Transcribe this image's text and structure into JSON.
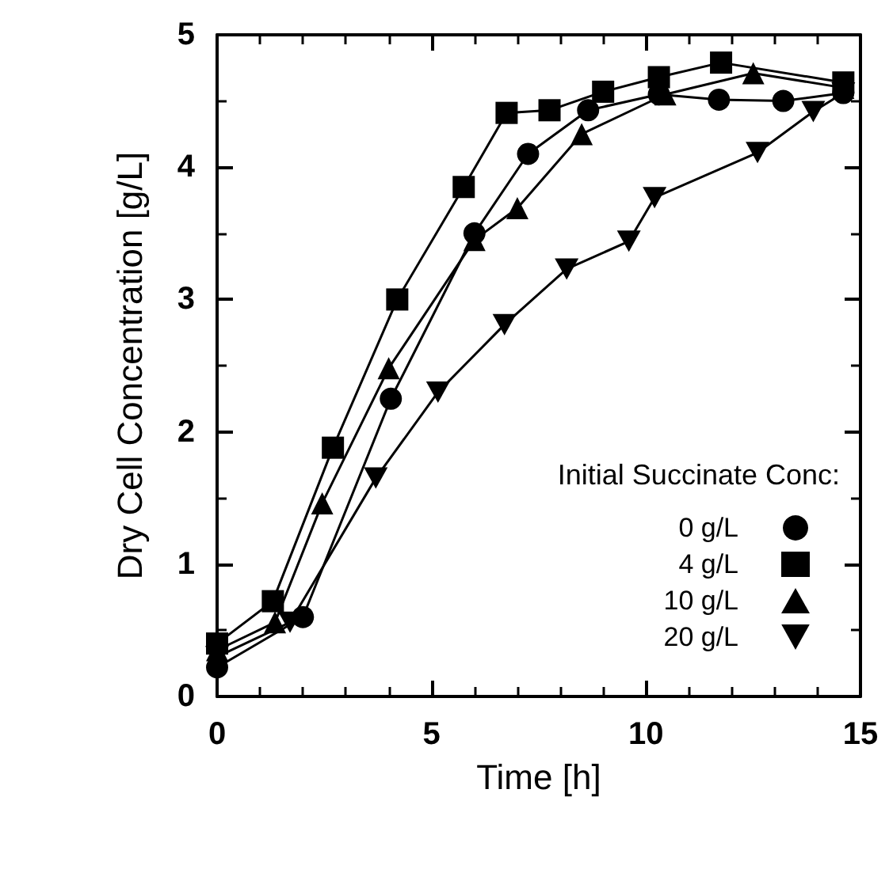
{
  "chart_data": {
    "type": "line",
    "xlabel": "Time [h]",
    "ylabel": "Dry Cell Concentration [g/L]",
    "legend_title": "Initial Succinate Conc:",
    "legend": "bottom right",
    "grid": false,
    "line_style": "solid",
    "xlim": [
      0,
      15
    ],
    "xticks": [
      0,
      5,
      10,
      15
    ],
    "ylim": [
      0,
      5
    ],
    "yticks": [
      0,
      1,
      2,
      3,
      4,
      5
    ],
    "series": [
      {
        "name": "0 g/L",
        "color": "#000000",
        "marker": "circle",
        "x": [
          0,
          2.0,
          4.05,
          6.0,
          7.25,
          8.65,
          10.3,
          11.7,
          13.2,
          14.6
        ],
        "values": [
          0.22,
          0.6,
          2.25,
          3.5,
          4.1,
          4.43,
          4.55,
          4.51,
          4.5,
          4.56
        ]
      },
      {
        "name": "4 g/L",
        "color": "#000000",
        "marker": "square",
        "x": [
          0,
          1.3,
          2.7,
          4.2,
          5.75,
          6.75,
          7.75,
          9.0,
          10.3,
          11.75,
          14.6
        ],
        "values": [
          0.4,
          0.72,
          1.88,
          3.0,
          3.85,
          4.41,
          4.43,
          4.57,
          4.68,
          4.79,
          4.64
        ]
      },
      {
        "name": "10 g/L",
        "color": "#000000",
        "marker": "triangle",
        "x": [
          0,
          1.35,
          2.45,
          4.0,
          6.0,
          7.0,
          8.5,
          10.45,
          12.5,
          14.6
        ],
        "values": [
          0.35,
          0.56,
          1.46,
          2.48,
          3.45,
          3.69,
          4.25,
          4.55,
          4.71,
          4.6
        ]
      },
      {
        "name": "20 g/L",
        "color": "#000000",
        "marker": "triangle",
        "x": [
          0,
          1.7,
          3.7,
          5.15,
          6.7,
          8.15,
          9.6,
          10.2,
          12.6,
          13.9,
          14.6
        ],
        "values": [
          0.3,
          0.56,
          1.65,
          2.3,
          2.81,
          3.23,
          3.44,
          3.77,
          4.11,
          4.42,
          4.56
        ]
      }
    ]
  }
}
